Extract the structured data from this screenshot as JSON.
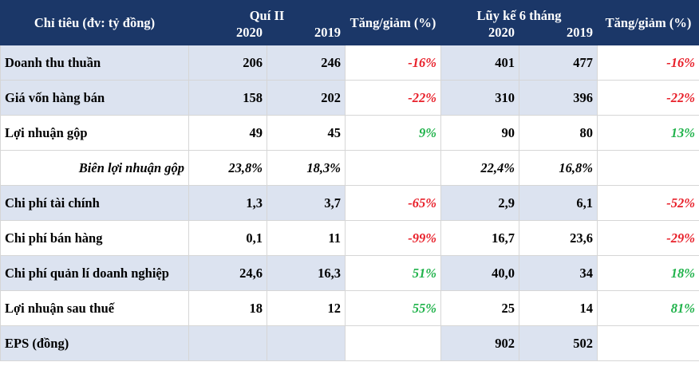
{
  "header": {
    "indicator_label": "Chỉ tiêu (đv: tỷ đồng)",
    "q2_label": "Quí II",
    "ytd_label": "Lũy kế 6 tháng",
    "change_label": "Tăng/giảm (%)",
    "year_2020": "2020",
    "year_2019": "2019"
  },
  "rows": [
    {
      "label": "Doanh thu thuần",
      "q2_2020": "206",
      "q2_2019": "246",
      "q2_change": "-16%",
      "ytd_2020": "401",
      "ytd_2019": "477",
      "ytd_change": "-16%"
    },
    {
      "label": "Giá vốn hàng bán",
      "q2_2020": "158",
      "q2_2019": "202",
      "q2_change": "-22%",
      "ytd_2020": "310",
      "ytd_2019": "396",
      "ytd_change": "-22%"
    },
    {
      "label": "Lợi nhuận gộp",
      "q2_2020": "49",
      "q2_2019": "45",
      "q2_change": "9%",
      "ytd_2020": "90",
      "ytd_2019": "80",
      "ytd_change": "13%"
    },
    {
      "label": "Biên lợi nhuận gộp",
      "q2_2020": "23,8%",
      "q2_2019": "18,3%",
      "q2_change": "",
      "ytd_2020": "22,4%",
      "ytd_2019": "16,8%",
      "ytd_change": ""
    },
    {
      "label": "Chi phí tài chính",
      "q2_2020": "1,3",
      "q2_2019": "3,7",
      "q2_change": "-65%",
      "ytd_2020": "2,9",
      "ytd_2019": "6,1",
      "ytd_change": "-52%"
    },
    {
      "label": "Chi phí bán hàng",
      "q2_2020": "0,1",
      "q2_2019": "11",
      "q2_change": "-99%",
      "ytd_2020": "16,7",
      "ytd_2019": "23,6",
      "ytd_change": "-29%"
    },
    {
      "label": "Chi phí quản lí doanh nghiệp",
      "q2_2020": "24,6",
      "q2_2019": "16,3",
      "q2_change": "51%",
      "ytd_2020": "40,0",
      "ytd_2019": "34",
      "ytd_change": "18%"
    },
    {
      "label": "Lợi nhuận sau thuế",
      "q2_2020": "18",
      "q2_2019": "12",
      "q2_change": "55%",
      "ytd_2020": "25",
      "ytd_2019": "14",
      "ytd_change": "81%"
    },
    {
      "label": "EPS (đồng)",
      "q2_2020": "",
      "q2_2019": "",
      "q2_change": "",
      "ytd_2020": "902",
      "ytd_2019": "502",
      "ytd_change": ""
    }
  ],
  "colors": {
    "header_bg": "#1b3768",
    "shade_bg": "#dce3f0",
    "negative": "#e8202a",
    "positive": "#1fb24a"
  }
}
